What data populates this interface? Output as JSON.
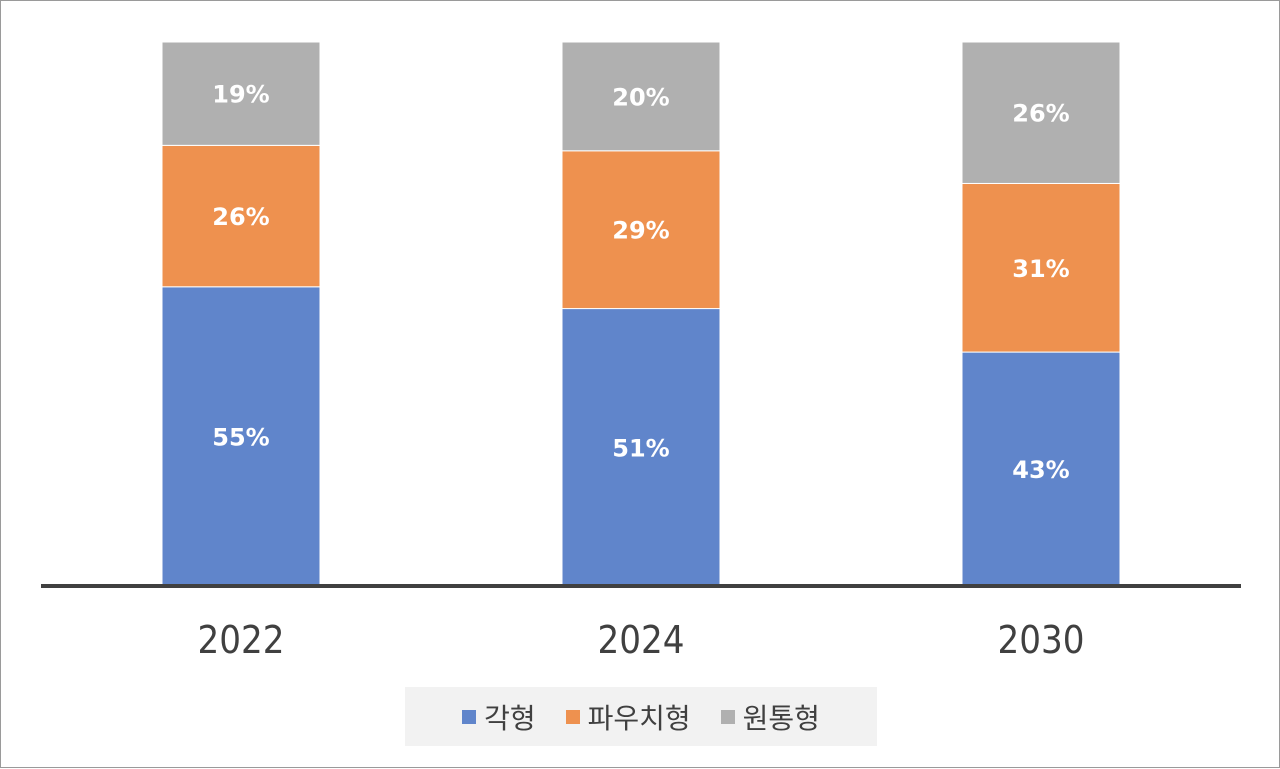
{
  "chart_data": {
    "type": "bar",
    "stacked": true,
    "categories": [
      "2022",
      "2024",
      "2030"
    ],
    "series": [
      {
        "name": "각형",
        "values": [
          55,
          51,
          43
        ],
        "color": "#6085cb",
        "labels": [
          "55%",
          "51%",
          "43%"
        ]
      },
      {
        "name": "파우치형",
        "values": [
          26,
          29,
          31
        ],
        "color": "#ee914f",
        "labels": [
          "26%",
          "29%",
          "31%"
        ]
      },
      {
        "name": "원통형",
        "values": [
          19,
          20,
          26
        ],
        "color": "#b0b0b0",
        "labels": [
          "19%",
          "20%",
          "26%"
        ]
      }
    ],
    "ylim": [
      0,
      100
    ],
    "grid": false,
    "legend_position": "bottom"
  }
}
